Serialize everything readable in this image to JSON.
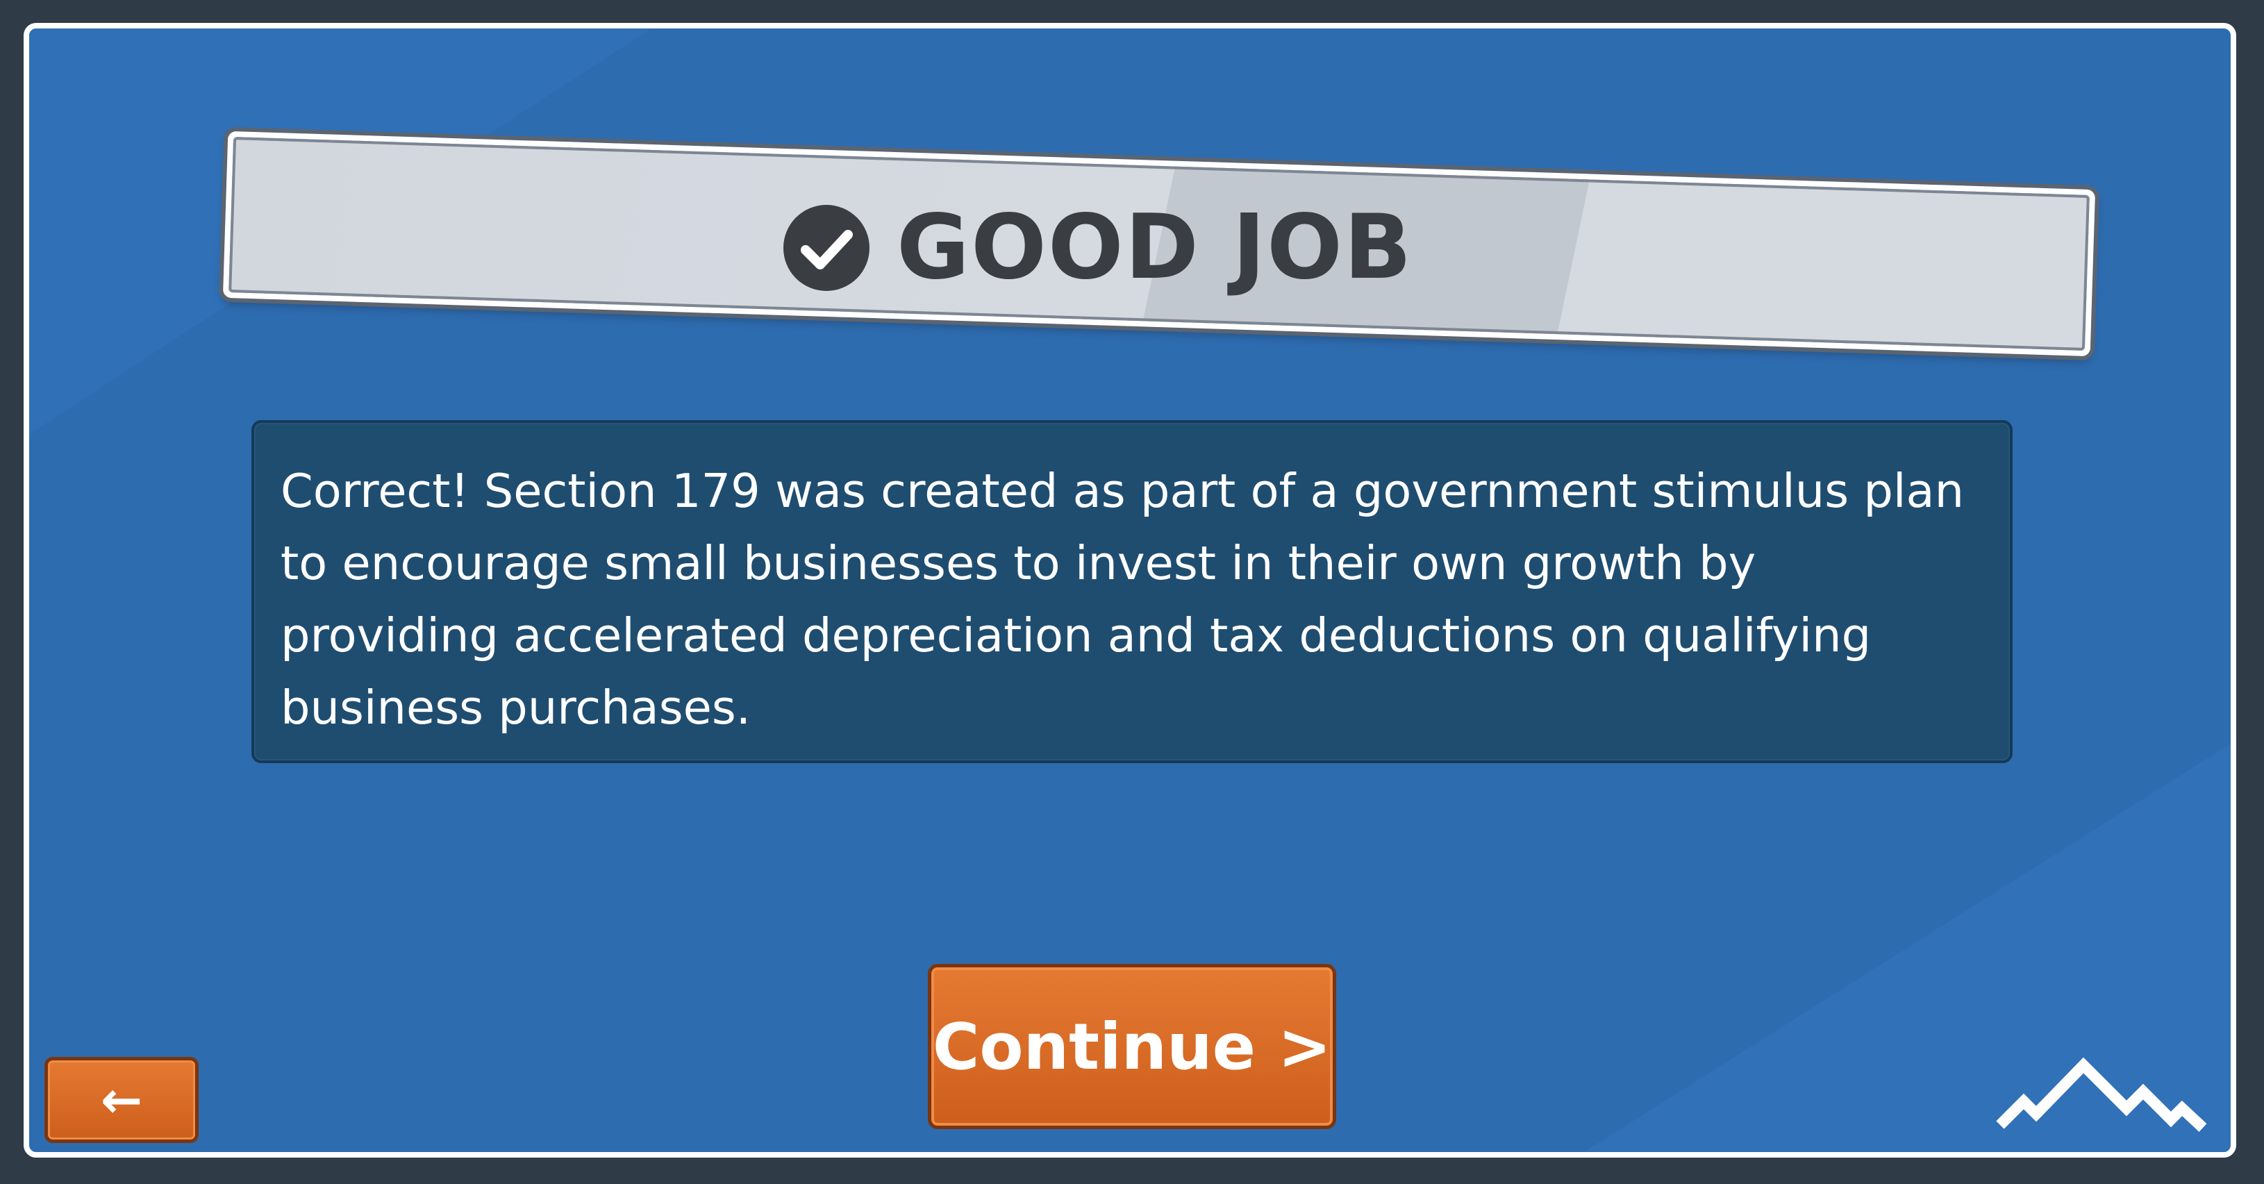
{
  "banner": {
    "title": "GOOD JOB",
    "icon": "checkmark-circle-icon"
  },
  "message": {
    "text": "Correct! Section 179 was created as part of a government stimulus plan to encourage small businesses to invest in their own growth by providing accelerated depreciation and tax deductions on qualifying business purchases."
  },
  "buttons": {
    "continue_label": "Continue >",
    "back_label": "←"
  },
  "logo": {
    "icon": "mountains-logo-icon"
  },
  "colors": {
    "background": "#2e6cb0",
    "accent": "#e0712a",
    "message_box": "#1f4d70",
    "banner": "#d2d7de",
    "frame": "#ffffff"
  }
}
